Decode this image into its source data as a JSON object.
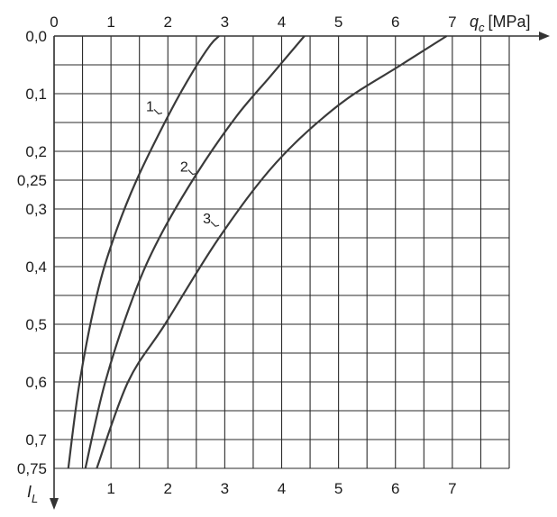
{
  "chart_data": {
    "type": "line",
    "title": "",
    "x_axis": {
      "symbol": "q",
      "subscript": "c",
      "unit": "[MPa]",
      "range": [
        0,
        8
      ],
      "top_ticks": [
        "0",
        "1",
        "2",
        "3",
        "4",
        "5",
        "6",
        "7"
      ],
      "bottom_ticks": [
        "1",
        "2",
        "3",
        "4",
        "5",
        "6",
        "7"
      ]
    },
    "y_axis": {
      "symbol": "I",
      "subscript": "L",
      "range": [
        0,
        0.75
      ],
      "reversed": true,
      "ticks": [
        "0,0",
        "0,1",
        "0,2",
        "0,25",
        "0,3",
        "0,4",
        "0,5",
        "0,6",
        "0,7",
        "0,75"
      ]
    },
    "grid": true,
    "series": [
      {
        "name": "1",
        "color": "#3a3a3a",
        "points": [
          [
            0.25,
            0.75
          ],
          [
            0.45,
            0.6
          ],
          [
            0.75,
            0.45
          ],
          [
            1.05,
            0.35
          ],
          [
            1.45,
            0.25
          ],
          [
            2.05,
            0.13
          ],
          [
            2.45,
            0.06
          ],
          [
            2.75,
            0.015
          ],
          [
            2.9,
            0.0
          ]
        ]
      },
      {
        "name": "2",
        "color": "#3a3a3a",
        "points": [
          [
            0.55,
            0.75
          ],
          [
            0.9,
            0.6
          ],
          [
            1.4,
            0.45
          ],
          [
            1.85,
            0.35
          ],
          [
            2.5,
            0.24
          ],
          [
            3.2,
            0.14
          ],
          [
            3.8,
            0.07
          ],
          [
            4.4,
            0.0
          ]
        ]
      },
      {
        "name": "3",
        "color": "#3a3a3a",
        "points": [
          [
            0.75,
            0.75
          ],
          [
            1.3,
            0.6
          ],
          [
            1.95,
            0.5
          ],
          [
            2.9,
            0.35
          ],
          [
            3.9,
            0.22
          ],
          [
            5.0,
            0.12
          ],
          [
            6.1,
            0.05
          ],
          [
            6.9,
            0.0
          ]
        ]
      }
    ],
    "curve_labels": [
      {
        "text": "1",
        "x": 1.9,
        "y": 0.135
      },
      {
        "text": "2",
        "x": 2.5,
        "y": 0.24
      },
      {
        "text": "3",
        "x": 2.9,
        "y": 0.33
      }
    ]
  }
}
